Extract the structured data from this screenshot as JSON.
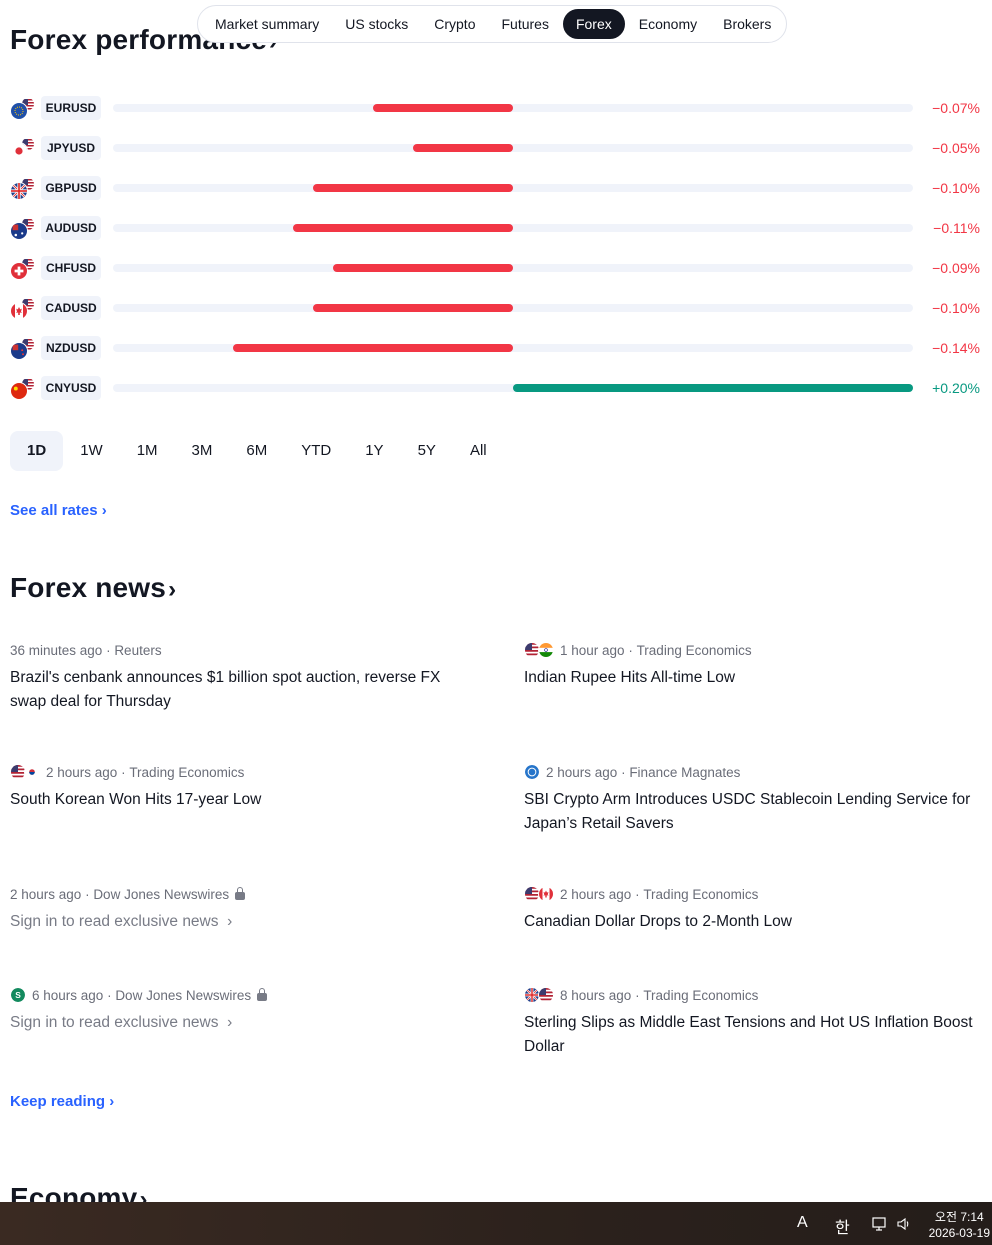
{
  "nav": {
    "tabs": [
      {
        "label": "Market summary",
        "active": false
      },
      {
        "label": "US stocks",
        "active": false
      },
      {
        "label": "Crypto",
        "active": false
      },
      {
        "label": "Futures",
        "active": false
      },
      {
        "label": "Forex",
        "active": true
      },
      {
        "label": "Economy",
        "active": false
      },
      {
        "label": "Brokers",
        "active": false
      }
    ]
  },
  "performance": {
    "title": "Forex performance",
    "rows": [
      {
        "symbol": "EURUSD",
        "change": "−0.07%",
        "value": -0.07,
        "flags": [
          "eu",
          "us"
        ]
      },
      {
        "symbol": "JPYUSD",
        "change": "−0.05%",
        "value": -0.05,
        "flags": [
          "jp",
          "us"
        ]
      },
      {
        "symbol": "GBPUSD",
        "change": "−0.10%",
        "value": -0.1,
        "flags": [
          "gb",
          "us"
        ]
      },
      {
        "symbol": "AUDUSD",
        "change": "−0.11%",
        "value": -0.11,
        "flags": [
          "au",
          "us"
        ]
      },
      {
        "symbol": "CHFUSD",
        "change": "−0.09%",
        "value": -0.09,
        "flags": [
          "ch",
          "us"
        ]
      },
      {
        "symbol": "CADUSD",
        "change": "−0.10%",
        "value": -0.1,
        "flags": [
          "ca",
          "us"
        ]
      },
      {
        "symbol": "NZDUSD",
        "change": "−0.14%",
        "value": -0.14,
        "flags": [
          "nz",
          "us"
        ]
      },
      {
        "symbol": "CNYUSD",
        "change": "+0.20%",
        "value": 0.2,
        "flags": [
          "cn",
          "us"
        ]
      }
    ],
    "ranges": [
      {
        "label": "1D",
        "active": true
      },
      {
        "label": "1W",
        "active": false
      },
      {
        "label": "1M",
        "active": false
      },
      {
        "label": "3M",
        "active": false
      },
      {
        "label": "6M",
        "active": false
      },
      {
        "label": "YTD",
        "active": false
      },
      {
        "label": "1Y",
        "active": false
      },
      {
        "label": "5Y",
        "active": false
      },
      {
        "label": "All",
        "active": false
      }
    ],
    "see_all": "See all rates"
  },
  "news": {
    "title": "Forex news",
    "items": [
      {
        "time": "36 minutes ago",
        "source": "Reuters",
        "title": "Brazil's cenbank announces $1 billion spot auction, reverse FX swap deal for Thursday",
        "icons": [],
        "locked": false
      },
      {
        "time": "1 hour ago",
        "source": "Trading Economics",
        "title": "Indian Rupee Hits All-time Low",
        "icons": [
          "us",
          "in"
        ],
        "locked": false
      },
      {
        "time": "2 hours ago",
        "source": "Trading Economics",
        "title": "South Korean Won Hits 17-year Low",
        "icons": [
          "us",
          "kr"
        ],
        "locked": false
      },
      {
        "time": "2 hours ago",
        "source": "Finance Magnates",
        "title": "SBI Crypto Arm Introduces USDC Stablecoin Lending Service for Japan’s Retail Savers",
        "icons": [
          "usdc"
        ],
        "locked": false
      },
      {
        "time": "2 hours ago",
        "source": "Dow Jones Newswires",
        "title": "Sign in to read exclusive news",
        "icons": [],
        "locked": true
      },
      {
        "time": "2 hours ago",
        "source": "Trading Economics",
        "title": "Canadian Dollar Drops to 2-Month Low",
        "icons": [
          "us",
          "ca"
        ],
        "locked": false
      },
      {
        "time": "6 hours ago",
        "source": "Dow Jones Newswires",
        "title": "Sign in to read exclusive news",
        "icons": [
          "s-logo"
        ],
        "locked": true
      },
      {
        "time": "8 hours ago",
        "source": "Trading Economics",
        "title": "Sterling Slips as Middle East Tensions and Hot US Inflation Boost Dollar",
        "icons": [
          "gb",
          "us"
        ],
        "locked": false
      }
    ],
    "keep_reading": "Keep reading"
  },
  "economy": {
    "title": "Economy"
  },
  "taskbar": {
    "ime_a": "A",
    "ime_han": "한",
    "time": "오전 7:14",
    "date": "2026-03-19"
  },
  "colors": {
    "negative": "#f23645",
    "positive": "#089981",
    "link": "#2962ff"
  }
}
